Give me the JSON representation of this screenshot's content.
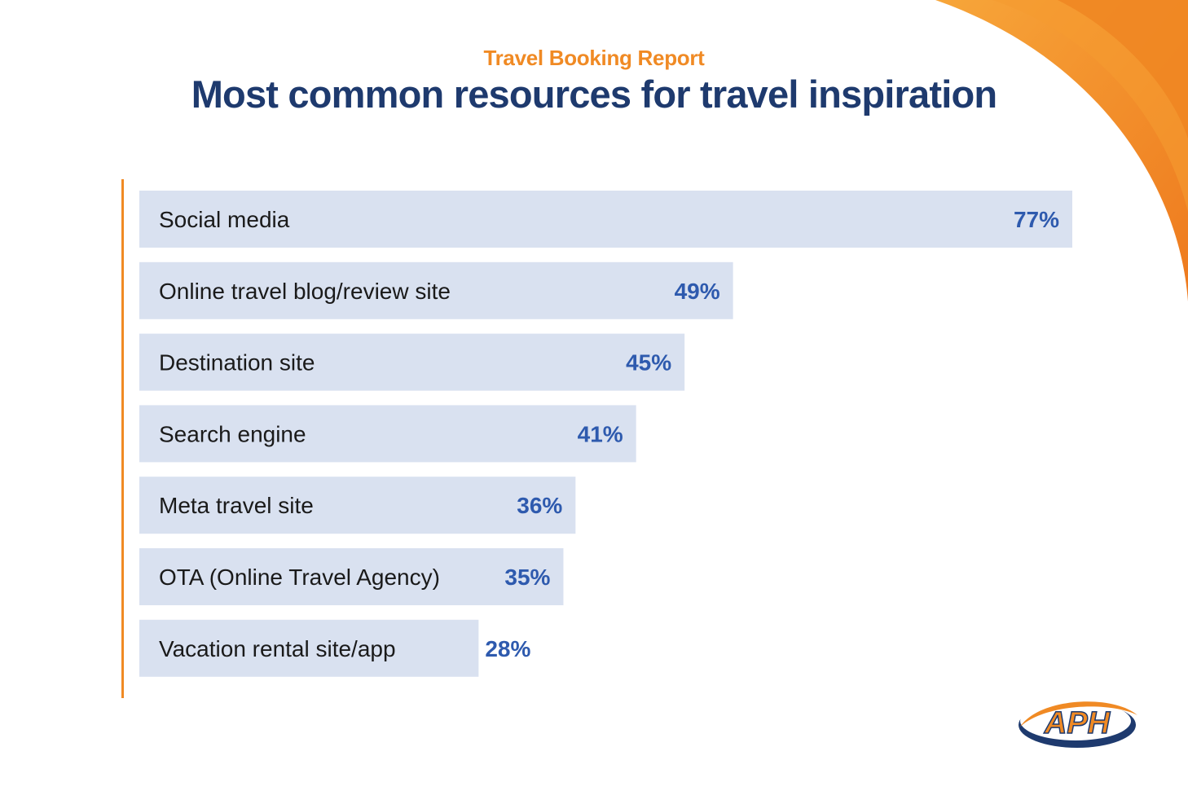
{
  "header": {
    "supertitle": "Travel Booking Report",
    "title": "Most common resources for travel inspiration"
  },
  "colors": {
    "accent": "#F08A24",
    "title": "#1E3A6E",
    "bar_fill": "#D9E1F0",
    "value_text": "#2E5AAE",
    "label_text": "#1A1A1A"
  },
  "logo": {
    "text": "APH"
  },
  "chart_data": {
    "type": "bar",
    "orientation": "horizontal",
    "title": "Most common resources for travel inspiration",
    "xlabel": "",
    "ylabel": "",
    "xlim": [
      0,
      77
    ],
    "grid": false,
    "categories": [
      "Social media",
      "Online travel blog/review site",
      "Destination site",
      "Search engine",
      "Meta travel site",
      "OTA (Online Travel Agency)",
      "Vacation rental site/app"
    ],
    "values": [
      77,
      49,
      45,
      41,
      36,
      35,
      28
    ],
    "value_labels": [
      "77%",
      "49%",
      "45%",
      "41%",
      "36%",
      "35%",
      "28%"
    ]
  }
}
